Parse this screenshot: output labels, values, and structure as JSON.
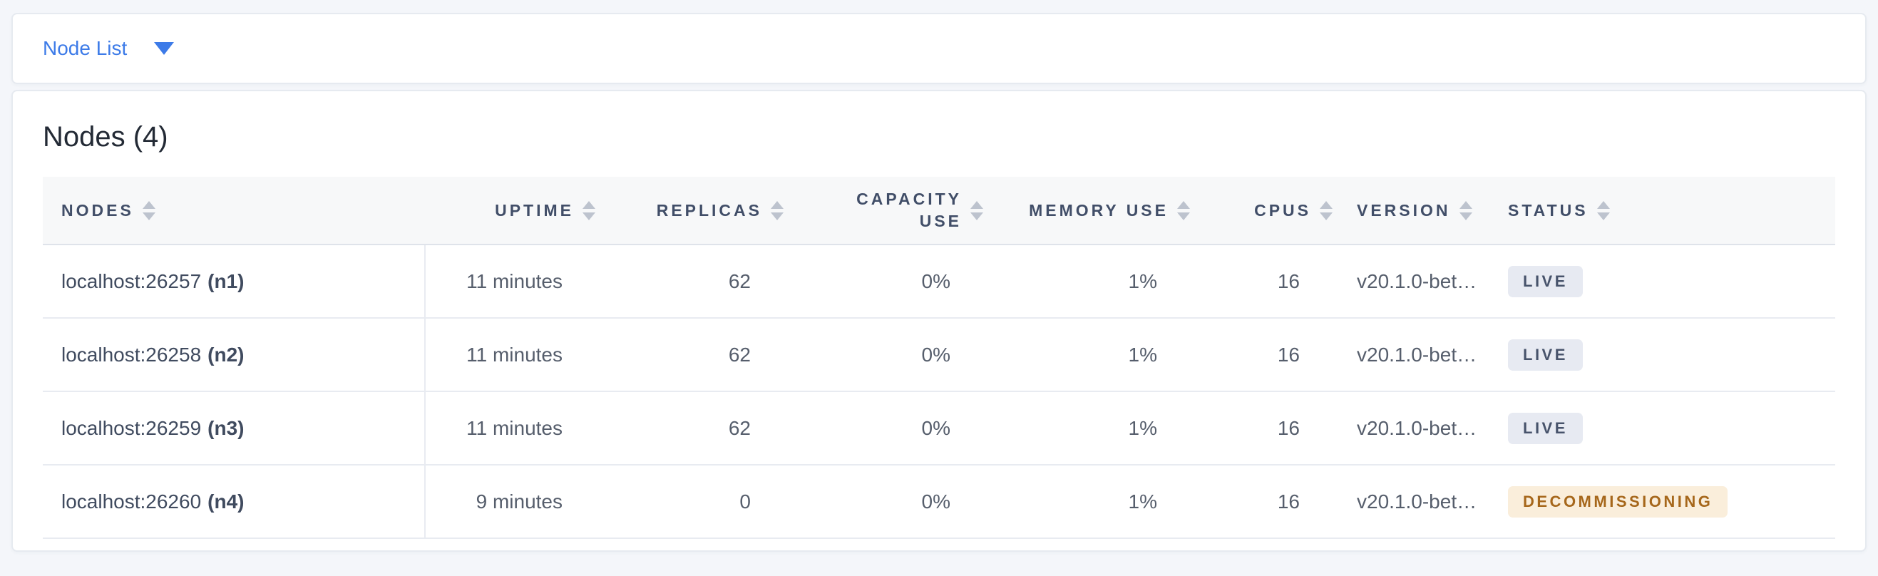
{
  "view_selector": {
    "label": "Node List"
  },
  "summary": {
    "title": "Nodes (4)"
  },
  "table": {
    "columns": [
      {
        "key": "nodes",
        "label": "NODES",
        "align": "left",
        "sortable": true
      },
      {
        "key": "uptime",
        "label": "UPTIME",
        "align": "right",
        "sortable": true
      },
      {
        "key": "replicas",
        "label": "REPLICAS",
        "align": "right",
        "sortable": true
      },
      {
        "key": "capacity_use",
        "label": "CAPACITY USE",
        "align": "right",
        "sortable": true
      },
      {
        "key": "memory_use",
        "label": "MEMORY USE",
        "align": "right",
        "sortable": true
      },
      {
        "key": "cpus",
        "label": "CPUS",
        "align": "right",
        "sortable": true
      },
      {
        "key": "version",
        "label": "VERSION",
        "align": "left",
        "sortable": true
      },
      {
        "key": "status",
        "label": "STATUS",
        "align": "left",
        "sortable": true
      }
    ],
    "rows": [
      {
        "address": "localhost:26257",
        "node_id": "(n1)",
        "uptime": "11 minutes",
        "replicas": "62",
        "capacity_use": "0%",
        "memory_use": "1%",
        "cpus": "16",
        "version": "v20.1.0-bet…",
        "status": "LIVE",
        "status_kind": "live"
      },
      {
        "address": "localhost:26258",
        "node_id": "(n2)",
        "uptime": "11 minutes",
        "replicas": "62",
        "capacity_use": "0%",
        "memory_use": "1%",
        "cpus": "16",
        "version": "v20.1.0-bet…",
        "status": "LIVE",
        "status_kind": "live"
      },
      {
        "address": "localhost:26259",
        "node_id": "(n3)",
        "uptime": "11 minutes",
        "replicas": "62",
        "capacity_use": "0%",
        "memory_use": "1%",
        "cpus": "16",
        "version": "v20.1.0-bet…",
        "status": "LIVE",
        "status_kind": "live"
      },
      {
        "address": "localhost:26260",
        "node_id": "(n4)",
        "uptime": "9 minutes",
        "replicas": "0",
        "capacity_use": "0%",
        "memory_use": "1%",
        "cpus": "16",
        "version": "v20.1.0-bet…",
        "status": "DECOMMISSIONING",
        "status_kind": "decommissioning"
      }
    ]
  },
  "colors": {
    "page_background": "#F4F6FA",
    "accent_blue": "#3D7BE8",
    "live_badge_bg": "#E7EAF2",
    "live_badge_text": "#47536B",
    "decommissioning_badge_bg": "#FAEEDB",
    "decommissioning_badge_text": "#A6671B"
  }
}
